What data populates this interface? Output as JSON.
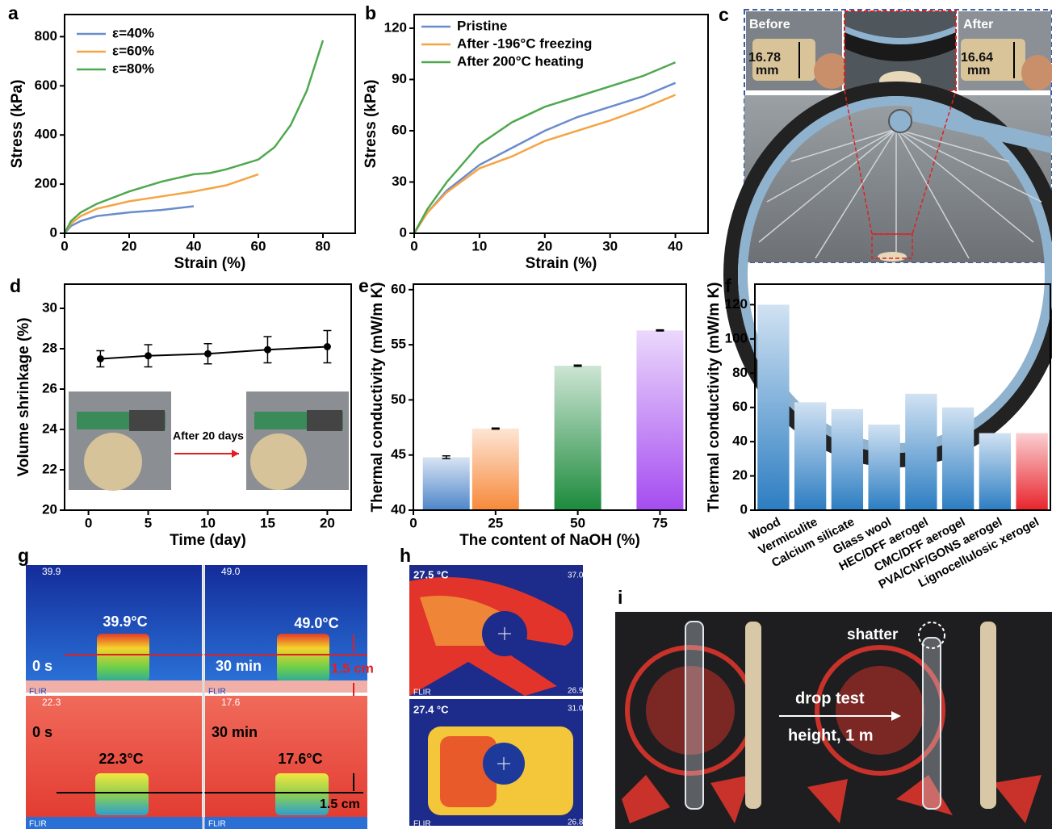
{
  "chart_data": [
    {
      "type": "line",
      "label": "a",
      "xlabel": "Strain (%)",
      "ylabel": "Stress (kPa)",
      "xlim": [
        0,
        90
      ],
      "ylim": [
        0,
        890
      ],
      "xticks": [
        0,
        20,
        40,
        60,
        80
      ],
      "yticks": [
        0,
        200,
        400,
        600,
        800
      ],
      "series": [
        {
          "name": "ε=40%",
          "color": "#6a8ccc",
          "x": [
            0,
            2,
            5,
            10,
            20,
            30,
            40
          ],
          "values": [
            0,
            30,
            50,
            70,
            85,
            95,
            110
          ]
        },
        {
          "name": "ε=60%",
          "color": "#f5a443",
          "x": [
            0,
            2,
            5,
            10,
            20,
            30,
            40,
            50,
            60
          ],
          "values": [
            0,
            40,
            70,
            100,
            130,
            150,
            170,
            195,
            240
          ]
        },
        {
          "name": "ε=80%",
          "color": "#4fa84f",
          "x": [
            0,
            2,
            5,
            10,
            20,
            30,
            40,
            45,
            50,
            60,
            65,
            70,
            75,
            80
          ],
          "values": [
            0,
            50,
            85,
            120,
            170,
            210,
            240,
            245,
            260,
            300,
            350,
            440,
            580,
            785
          ]
        }
      ]
    },
    {
      "type": "line",
      "label": "b",
      "xlabel": "Strain (%)",
      "ylabel": "Stress (kPa)",
      "xlim": [
        0,
        45
      ],
      "ylim": [
        0,
        128
      ],
      "xticks": [
        0,
        10,
        20,
        30,
        40
      ],
      "yticks": [
        0,
        30,
        60,
        90,
        120
      ],
      "series": [
        {
          "name": "Pristine",
          "color": "#6a8ccc",
          "x": [
            0,
            2,
            5,
            10,
            15,
            20,
            25,
            30,
            35,
            40
          ],
          "values": [
            0,
            12,
            25,
            40,
            50,
            60,
            68,
            74,
            80,
            88
          ]
        },
        {
          "name": "After -196°C freezing",
          "color": "#f5a443",
          "x": [
            0,
            2,
            5,
            10,
            15,
            20,
            25,
            30,
            35,
            40
          ],
          "values": [
            0,
            12,
            24,
            38,
            45,
            54,
            60,
            66,
            73,
            81
          ]
        },
        {
          "name": "After 200°C heating",
          "color": "#4fa84f",
          "x": [
            0,
            2,
            5,
            10,
            15,
            20,
            25,
            30,
            35,
            40
          ],
          "values": [
            0,
            14,
            30,
            52,
            65,
            74,
            80,
            86,
            92,
            100
          ]
        }
      ]
    },
    {
      "type": "line",
      "label": "d",
      "xlabel": "Time (day)",
      "ylabel": "Volume shrinkage (%)",
      "xlim": [
        -2,
        22
      ],
      "ylim": [
        20,
        31.2
      ],
      "xticks": [
        0,
        5,
        10,
        15,
        20
      ],
      "yticks": [
        20,
        22,
        24,
        26,
        28,
        30
      ],
      "markers": true,
      "series": [
        {
          "color": "#000000",
          "x": [
            1,
            5,
            10,
            15,
            20
          ],
          "values": [
            27.5,
            27.65,
            27.75,
            27.95,
            28.1
          ],
          "errors": [
            0.4,
            0.55,
            0.5,
            0.65,
            0.8
          ]
        }
      ]
    },
    {
      "type": "bar",
      "label": "e",
      "xlabel": "The content of NaOH (%)",
      "ylabel": "Thermal conductivity (mW/m K)",
      "xlim": [
        0,
        83
      ],
      "ylim": [
        40,
        60.5
      ],
      "xticks": [
        0,
        25,
        50,
        75
      ],
      "yticks": [
        40,
        45,
        50,
        55,
        60
      ],
      "x": [
        10,
        25,
        50,
        75
      ],
      "values": [
        44.8,
        47.4,
        53.1,
        56.3
      ],
      "errors": [
        0.12,
        0.05,
        0.06,
        0.05
      ],
      "colors": [
        "#4d86c9",
        "#f7893a",
        "#1c8a3c",
        "#a54cf0"
      ]
    },
    {
      "type": "bar",
      "label": "f",
      "ylabel": "Thermal conductivity (mW/m K)",
      "ylim": [
        0,
        132
      ],
      "yticks": [
        0,
        20,
        40,
        60,
        80,
        100,
        120
      ],
      "categories": [
        "Wood",
        "Vermiculite",
        "Calcium silicate",
        "Glass wool",
        "HEC/DFF aerogel",
        "CMC/DFF aerogel",
        "PVA/CNF/GONS aerogel",
        "Lignocellulosic xerogel"
      ],
      "values": [
        120,
        63,
        59,
        50,
        68,
        60,
        45,
        45
      ],
      "colors": [
        "#2c7dc2",
        "#2c7dc2",
        "#2c7dc2",
        "#2c7dc2",
        "#2c7dc2",
        "#2c7dc2",
        "#2c7dc2",
        "#e8242c"
      ]
    }
  ],
  "photos": {
    "c": {
      "label": "c",
      "before": "Before",
      "before_size": "16.78",
      "before_unit": "mm",
      "after": "After",
      "after_size": "16.64",
      "after_unit": "mm"
    },
    "d_inset": {
      "text": "After 20 days"
    },
    "g": {
      "label": "g",
      "top_left_temp": "39.9°C",
      "top_right_temp": "49.0°C",
      "top_left_time": "0 s",
      "top_right_time": "30 min",
      "top_distance": "1.5 cm",
      "top_left_reading": "39.9",
      "top_right_reading": "49.0",
      "bottom_left_temp": "22.3°C",
      "bottom_right_temp": "17.6°C",
      "bottom_left_time": "0 s",
      "bottom_right_time": "30 min",
      "bottom_distance": "1.5 cm",
      "bottom_left_reading": "22.3",
      "bottom_right_reading": "17.6",
      "brand": "FLIR"
    },
    "h": {
      "label": "h",
      "top_reading": "27.5 °C",
      "top_max": "37.0",
      "top_min": "26.9",
      "bottom_reading": "27.4 °C",
      "bottom_max": "31.0",
      "bottom_min": "26.8"
    },
    "i": {
      "label": "i",
      "shatter": "shatter",
      "drop_test": "drop test",
      "height": "height, 1 m"
    }
  }
}
